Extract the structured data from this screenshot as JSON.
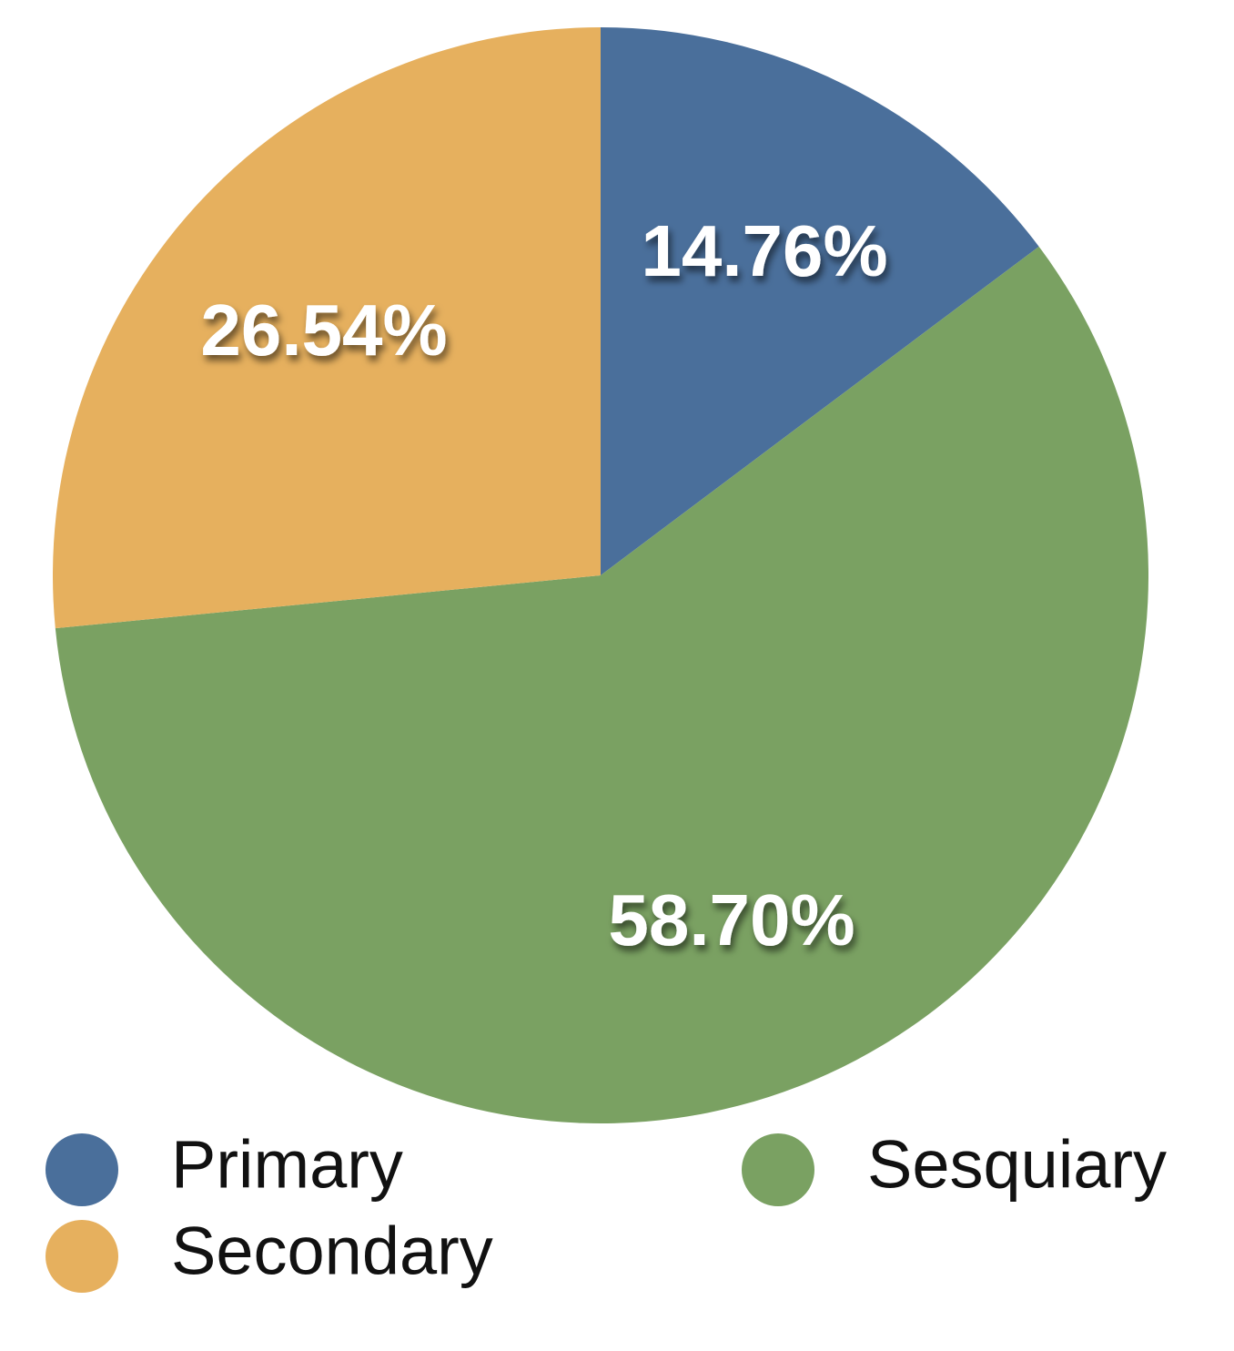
{
  "chart_data": {
    "type": "pie",
    "categories": [
      "Primary",
      "Secondary",
      "Sesquiary"
    ],
    "values": [
      14.76,
      26.54,
      58.7
    ],
    "value_labels": [
      "14.76%",
      "26.54%",
      "58.70%"
    ],
    "colors": [
      "#4a6f9b",
      "#e6b05e",
      "#7aa162"
    ],
    "start": "12 o'clock",
    "direction": "clockwise",
    "slice_order": [
      "Primary",
      "Sesquiary",
      "Secondary"
    ],
    "legend": {
      "placement": "bottom",
      "entries": [
        "Primary",
        "Secondary",
        "Sesquiary"
      ]
    },
    "title": ""
  }
}
